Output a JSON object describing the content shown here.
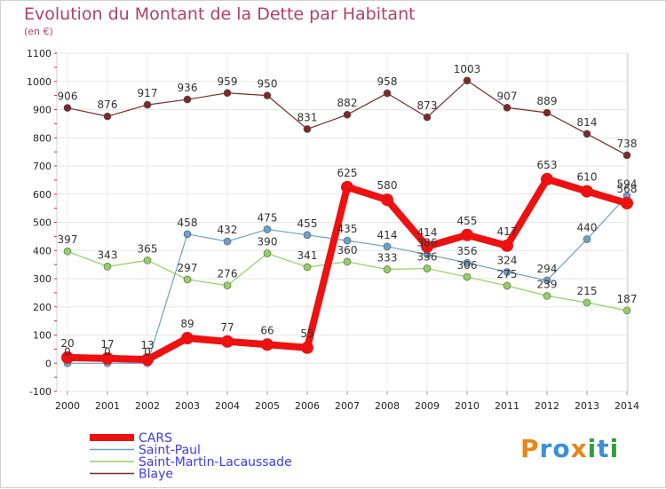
{
  "title": "Evolution du Montant de la Dette par Habitant",
  "subtitle": "(en €)",
  "brand": {
    "text": "Proxiti",
    "letters": [
      "P",
      "r",
      "o",
      "x",
      "i",
      "t",
      "i"
    ],
    "colors": [
      "#e8861a",
      "#3c8fd8",
      "#3c8fd8",
      "#e8861a",
      "#2f9f3f",
      "#3c8fd8",
      "#2f9f3f"
    ]
  },
  "chart_data": {
    "type": "line",
    "x": [
      2000,
      2001,
      2002,
      2003,
      2004,
      2005,
      2006,
      2007,
      2008,
      2009,
      2010,
      2011,
      2012,
      2013,
      2014
    ],
    "xticks": [
      "2000",
      "2001",
      "2002",
      "2003",
      "2004",
      "2005",
      "2006",
      "2007",
      "2008",
      "2009",
      "2010",
      "2011",
      "2012",
      "2013",
      "2014"
    ],
    "ylim": [
      -100,
      1100
    ],
    "yticks": [
      -100,
      0,
      100,
      200,
      300,
      400,
      500,
      600,
      700,
      800,
      900,
      1000,
      1100
    ],
    "grid": true,
    "legend_position": "bottom-left",
    "series": [
      {
        "name": "Blaye",
        "color": "#7a2a2a",
        "width": 1.2,
        "marker": 4,
        "values": [
          906,
          876,
          917,
          936,
          959,
          950,
          831,
          882,
          958,
          873,
          1003,
          907,
          889,
          814,
          738
        ],
        "labels": [
          "906",
          "876",
          "917",
          "936",
          "959",
          "950",
          "831",
          "882",
          "958",
          "873",
          "1003",
          "907",
          "889",
          "814",
          "738"
        ]
      },
      {
        "name": "Saint-Martin-Lacaussade",
        "color": "#90d060",
        "width": 1.2,
        "marker": 4,
        "values": [
          397,
          343,
          365,
          297,
          276,
          390,
          341,
          360,
          333,
          336,
          306,
          275,
          239,
          215,
          187
        ],
        "labels": [
          "397",
          "343",
          "365",
          "297",
          "276",
          "390",
          "341",
          "360",
          "333",
          "336",
          "306",
          "275",
          "239",
          "215",
          "187"
        ]
      },
      {
        "name": "Saint-Paul",
        "color": "#6aa0cc",
        "width": 1.2,
        "marker": 4,
        "values": [
          0,
          0,
          0,
          458,
          432,
          475,
          455,
          435,
          414,
          386,
          356,
          324,
          294,
          440,
          594
        ],
        "labels": [
          "0",
          "0",
          "0",
          "458",
          "432",
          "475",
          "455",
          "435",
          "414",
          "386",
          "356",
          "324",
          "294",
          "440",
          "594"
        ]
      },
      {
        "name": "CARS",
        "color": "#ee1111",
        "width": 8,
        "marker": 7,
        "values": [
          20,
          17,
          13,
          89,
          77,
          66,
          55,
          625,
          580,
          414,
          455,
          417,
          653,
          610,
          568
        ],
        "labels": [
          "20",
          "17",
          "13",
          "89",
          "77",
          "66",
          "55",
          "625",
          "580",
          "414",
          "455",
          "417",
          "653",
          "610",
          "568"
        ]
      }
    ],
    "legend": [
      "CARS",
      "Saint-Paul",
      "Saint-Martin-Lacaussade",
      "Blaye"
    ]
  }
}
